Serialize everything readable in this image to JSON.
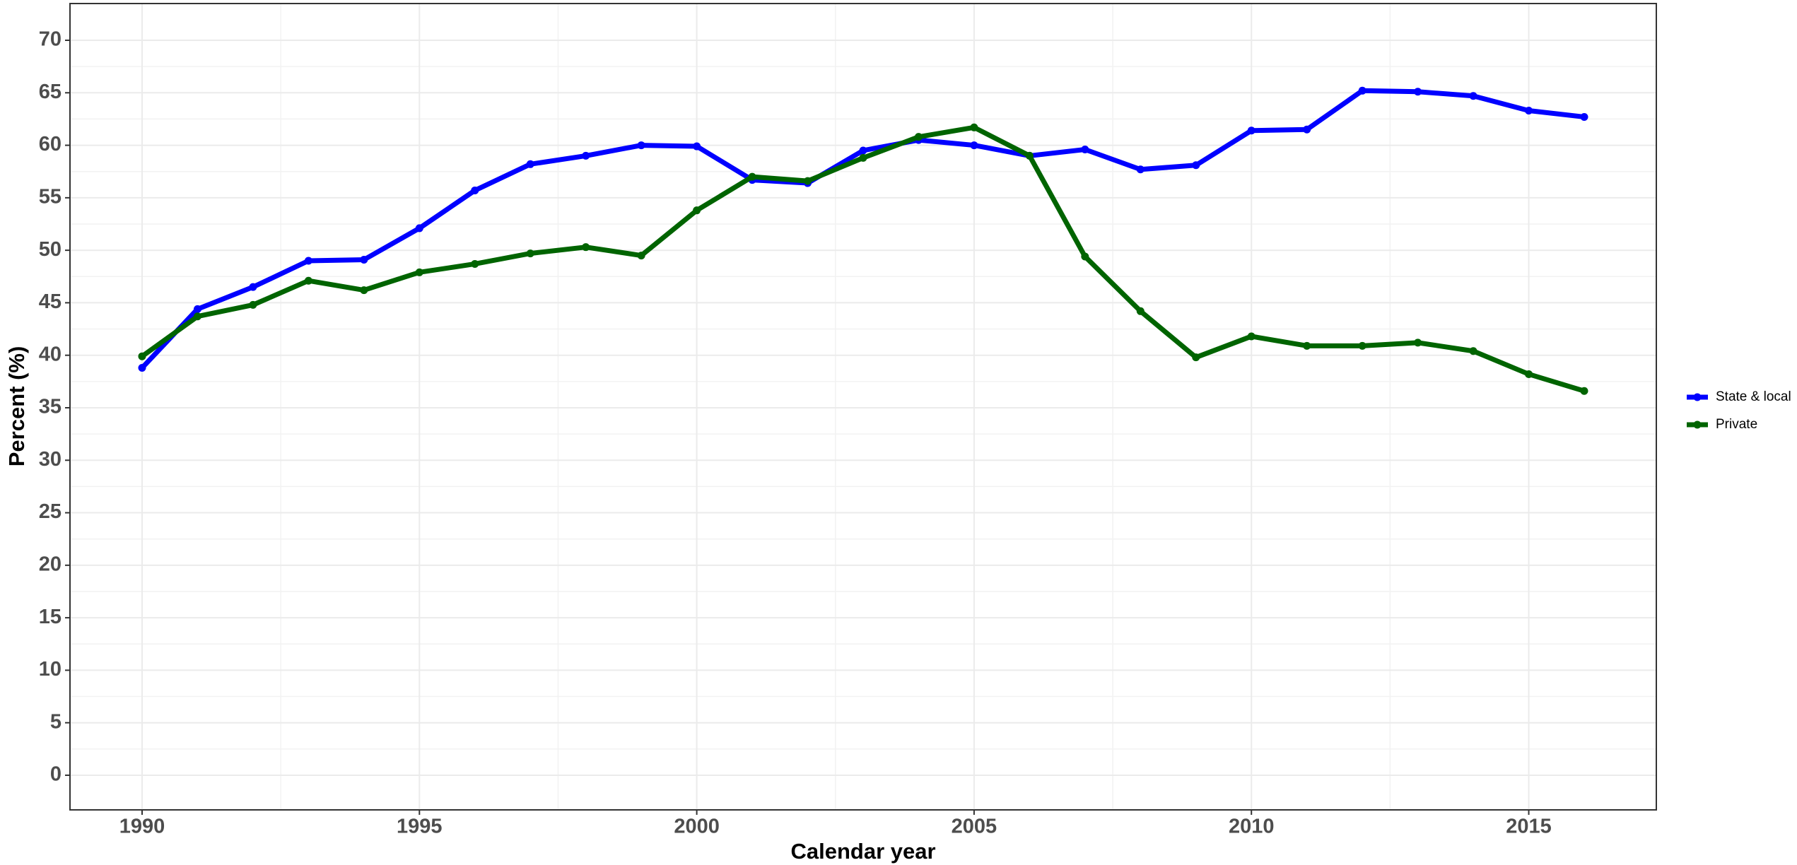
{
  "chart_data": {
    "type": "line",
    "x_label": "Calendar year",
    "y_label": "Percent (%)",
    "x": [
      1990,
      1991,
      1992,
      1993,
      1994,
      1995,
      1996,
      1997,
      1998,
      1999,
      2000,
      2001,
      2002,
      2003,
      2004,
      2005,
      2006,
      2007,
      2008,
      2009,
      2010,
      2011,
      2012,
      2013,
      2014,
      2015,
      2016
    ],
    "series": [
      {
        "name": "State & local",
        "color": "#0000ff",
        "values": [
          38.8,
          44.4,
          46.5,
          49.0,
          49.1,
          52.1,
          55.7,
          58.2,
          59.0,
          60.0,
          59.9,
          56.7,
          56.4,
          59.5,
          60.5,
          60.0,
          59.0,
          59.6,
          57.7,
          58.1,
          61.4,
          61.5,
          65.2,
          65.1,
          64.7,
          63.3,
          62.7
        ]
      },
      {
        "name": "Private",
        "color": "#006400",
        "values": [
          39.9,
          43.7,
          44.8,
          47.1,
          46.2,
          47.9,
          48.7,
          49.7,
          50.3,
          49.5,
          53.8,
          57.0,
          56.6,
          58.8,
          60.8,
          61.7,
          59.0,
          49.4,
          44.2,
          39.8,
          41.8,
          40.9,
          40.9,
          41.2,
          40.4,
          38.2,
          36.6
        ]
      }
    ],
    "xlim": [
      1988.7,
      2017.3
    ],
    "xticks": [
      1990,
      1995,
      2000,
      2005,
      2010,
      2015
    ],
    "ylim": [
      -3.3,
      73.5
    ],
    "yticks": [
      0,
      5,
      10,
      15,
      20,
      25,
      30,
      35,
      40,
      45,
      50,
      55,
      60,
      65,
      70
    ],
    "grid": true,
    "legend": "right"
  }
}
